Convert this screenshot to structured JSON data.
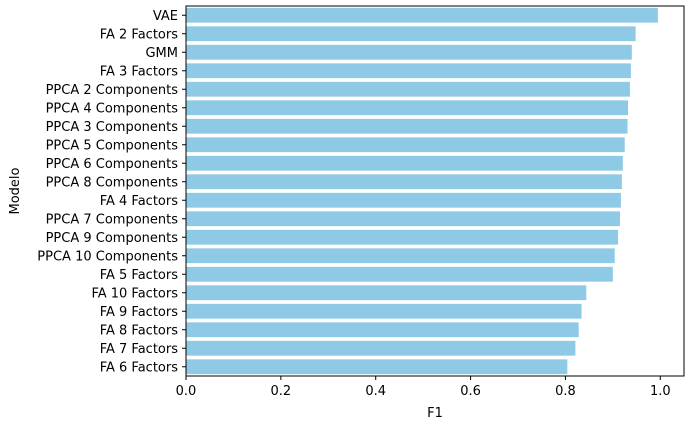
{
  "chart_data": {
    "type": "bar",
    "orientation": "horizontal",
    "title": "",
    "xlabel": "F1",
    "ylabel": "Modelo",
    "xlim": [
      0,
      1.05
    ],
    "xticks": [
      "0.0",
      "0.2",
      "0.4",
      "0.6",
      "0.8",
      "1.0"
    ],
    "xtick_values": [
      0,
      0.2,
      0.4,
      0.6,
      0.8,
      1.0
    ],
    "grid": false,
    "bar_color": "#8ecae6",
    "categories": [
      "VAE",
      "FA 2 Factors",
      "GMM",
      "FA 3 Factors",
      "PPCA 2 Components",
      "PPCA 4 Components",
      "PPCA 3 Components",
      "PPCA 5 Components",
      "PPCA 6 Components",
      "PPCA 8 Components",
      "FA 4 Factors",
      "PPCA 7 Components",
      "PPCA 9 Components",
      "PPCA 10 Components",
      "FA 5 Factors",
      "FA 10 Factors",
      "FA 9 Factors",
      "FA 8 Factors",
      "FA 7 Factors",
      "FA 6 Factors"
    ],
    "values": [
      0.995,
      0.948,
      0.94,
      0.938,
      0.936,
      0.932,
      0.931,
      0.925,
      0.921,
      0.919,
      0.917,
      0.915,
      0.911,
      0.904,
      0.9,
      0.844,
      0.834,
      0.828,
      0.821,
      0.804
    ]
  }
}
